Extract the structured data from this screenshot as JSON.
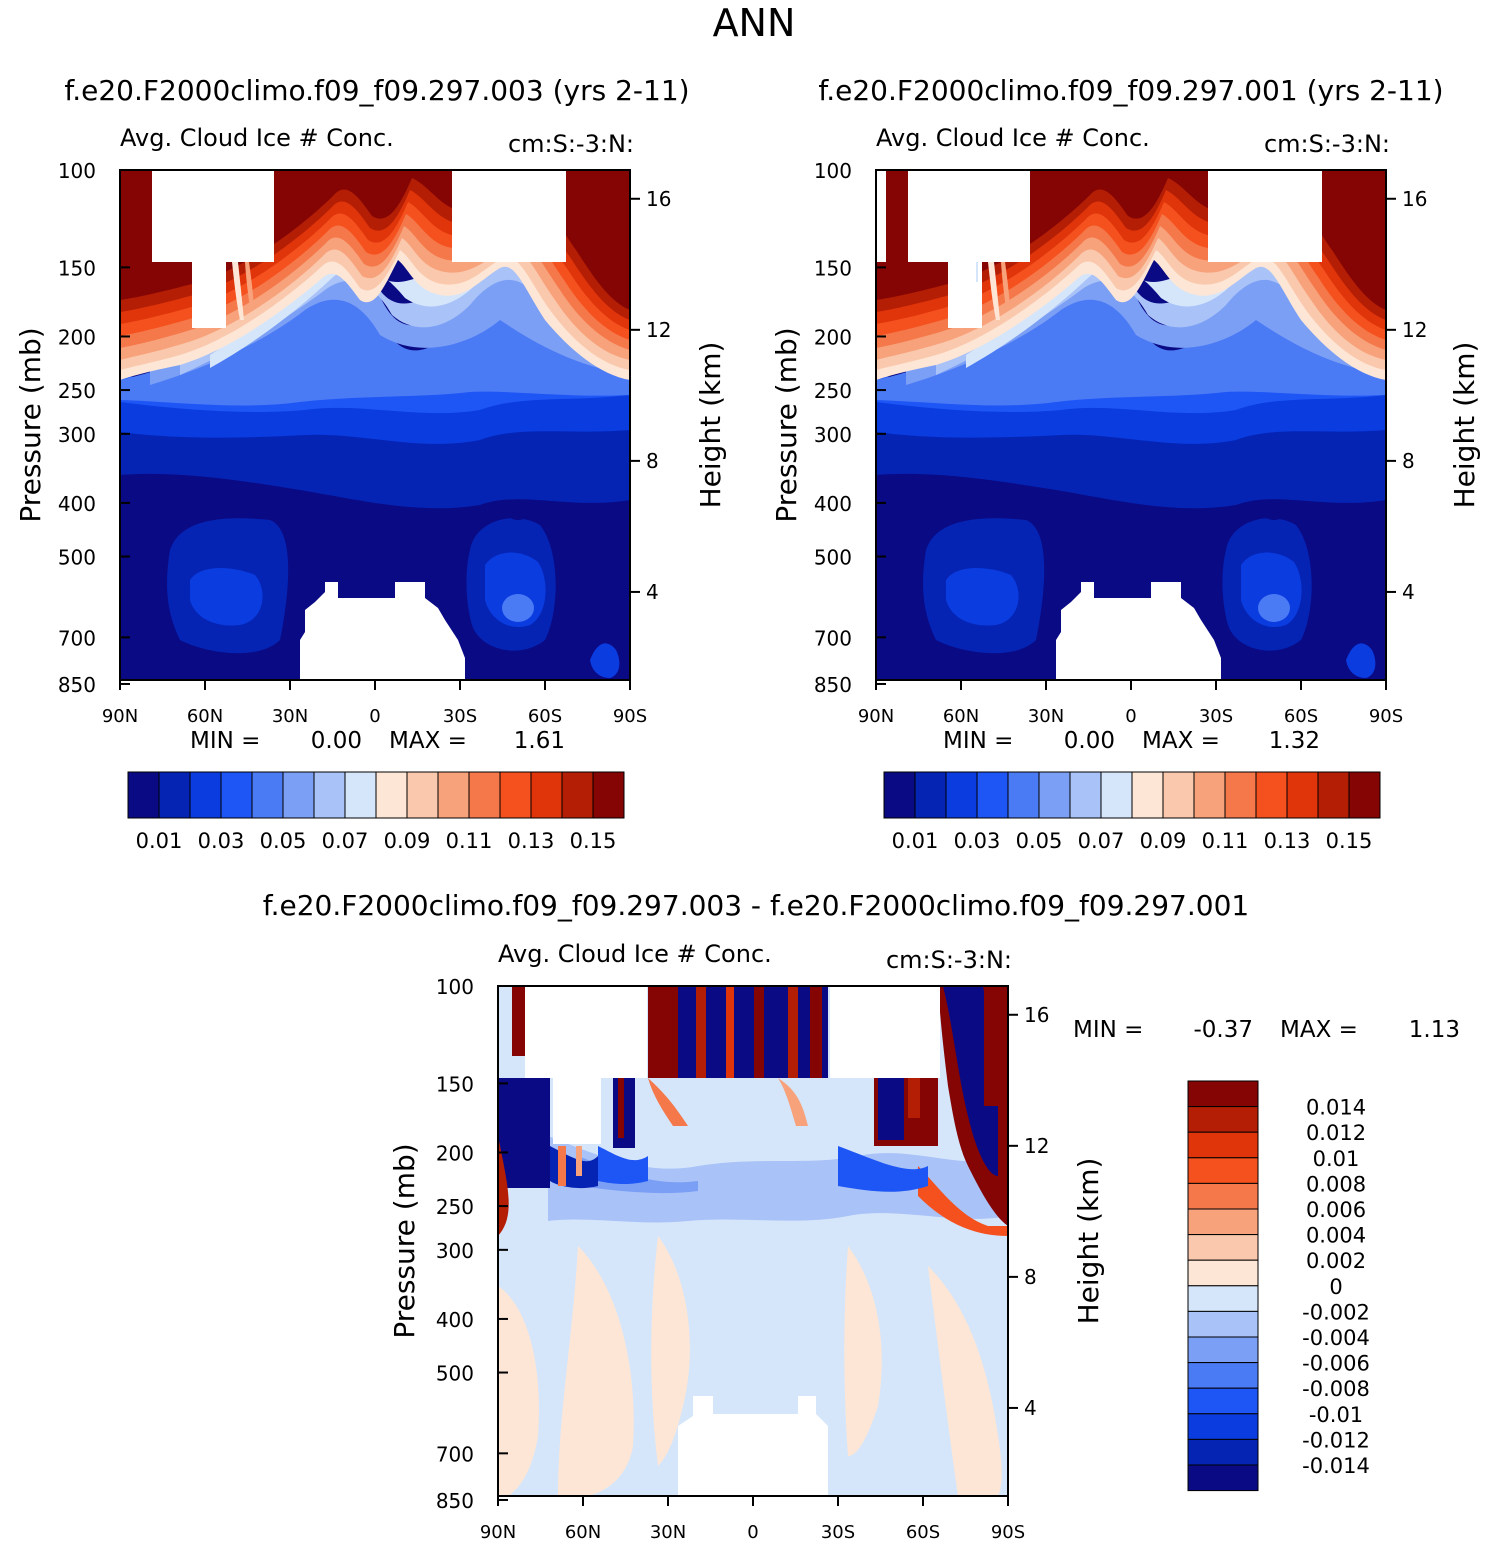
{
  "chart_data": {
    "type": "heatmap",
    "title": "ANN",
    "panels": [
      {
        "id": "case",
        "case_title": "f.e20.F2000climo.f09_f09.297.003 (yrs 2-11)",
        "variable": "Avg. Cloud Ice # Conc.",
        "units": "cm:S:-3:N:",
        "ylabel": "Pressure (mb)",
        "ylabel_right": "Height (km)",
        "y_ticks": [
          "100",
          "150",
          "200",
          "250",
          "300",
          "400",
          "500",
          "700",
          "850"
        ],
        "y_tick_values": [
          100,
          150,
          200,
          250,
          300,
          400,
          500,
          700,
          850
        ],
        "height_ticks": [
          "16",
          "12",
          "8",
          "4"
        ],
        "height_tick_values": [
          16,
          12,
          8,
          4
        ],
        "x_ticks": [
          "90N",
          "60N",
          "30N",
          "0",
          "30S",
          "60S",
          "90S"
        ],
        "x_tick_values": [
          90,
          60,
          30,
          0,
          -30,
          -60,
          -90
        ],
        "min_label": "MIN =",
        "min_value": "0.00",
        "max_label": "MAX =",
        "max_value": "1.61",
        "colorbar_labels": [
          "0.01",
          "0.03",
          "0.05",
          "0.07",
          "0.09",
          "0.11",
          "0.13",
          "0.15"
        ],
        "colorbar_levels": [
          0.01,
          0.02,
          0.03,
          0.04,
          0.05,
          0.06,
          0.07,
          0.08,
          0.09,
          0.1,
          0.11,
          0.12,
          0.13,
          0.14,
          0.15
        ]
      },
      {
        "id": "control",
        "case_title": "f.e20.F2000climo.f09_f09.297.001 (yrs 2-11)",
        "variable": "Avg. Cloud Ice # Conc.",
        "units": "cm:S:-3:N:",
        "ylabel": "Pressure (mb)",
        "ylabel_right": "Height (km)",
        "y_ticks": [
          "100",
          "150",
          "200",
          "250",
          "300",
          "400",
          "500",
          "700",
          "850"
        ],
        "y_tick_values": [
          100,
          150,
          200,
          250,
          300,
          400,
          500,
          700,
          850
        ],
        "height_ticks": [
          "16",
          "12",
          "8",
          "4"
        ],
        "height_tick_values": [
          16,
          12,
          8,
          4
        ],
        "x_ticks": [
          "90N",
          "60N",
          "30N",
          "0",
          "30S",
          "60S",
          "90S"
        ],
        "x_tick_values": [
          90,
          60,
          30,
          0,
          -30,
          -60,
          -90
        ],
        "min_label": "MIN =",
        "min_value": "0.00",
        "max_label": "MAX =",
        "max_value": "1.32",
        "colorbar_labels": [
          "0.01",
          "0.03",
          "0.05",
          "0.07",
          "0.09",
          "0.11",
          "0.13",
          "0.15"
        ],
        "colorbar_levels": [
          0.01,
          0.02,
          0.03,
          0.04,
          0.05,
          0.06,
          0.07,
          0.08,
          0.09,
          0.1,
          0.11,
          0.12,
          0.13,
          0.14,
          0.15
        ]
      },
      {
        "id": "difference",
        "case_title": "f.e20.F2000climo.f09_f09.297.003 - f.e20.F2000climo.f09_f09.297.001",
        "variable": "Avg. Cloud Ice # Conc.",
        "units": "cm:S:-3:N:",
        "ylabel": "Pressure (mb)",
        "ylabel_right": "Height (km)",
        "y_ticks": [
          "100",
          "150",
          "200",
          "250",
          "300",
          "400",
          "500",
          "700",
          "850"
        ],
        "y_tick_values": [
          100,
          150,
          200,
          250,
          300,
          400,
          500,
          700,
          850
        ],
        "height_ticks": [
          "16",
          "12",
          "8",
          "4"
        ],
        "height_tick_values": [
          16,
          12,
          8,
          4
        ],
        "x_ticks": [
          "90N",
          "60N",
          "30N",
          "0",
          "30S",
          "60S",
          "90S"
        ],
        "x_tick_values": [
          90,
          60,
          30,
          0,
          -30,
          -60,
          -90
        ],
        "min_label": "MIN =",
        "min_value": "-0.37",
        "max_label": "MAX =",
        "max_value": "1.13",
        "colorbar_labels": [
          "0.014",
          "0.012",
          "0.01",
          "0.008",
          "0.006",
          "0.004",
          "0.002",
          "0",
          "-0.002",
          "-0.004",
          "-0.006",
          "-0.008",
          "-0.01",
          "-0.012",
          "-0.014"
        ],
        "colorbar_levels": [
          0.014,
          0.012,
          0.01,
          0.008,
          0.006,
          0.004,
          0.002,
          0,
          -0.002,
          -0.004,
          -0.006,
          -0.008,
          -0.01,
          -0.012,
          -0.014
        ]
      }
    ],
    "colormap": [
      "#0a0a85",
      "#0524b4",
      "#0a3ce0",
      "#1e55f5",
      "#4b7af5",
      "#7b9ff5",
      "#a9c2f7",
      "#d5e6fb",
      "#fde6d5",
      "#fac8ad",
      "#f7a27b",
      "#f5784b",
      "#f5511e",
      "#e0340a",
      "#b41e05",
      "#850505"
    ]
  }
}
